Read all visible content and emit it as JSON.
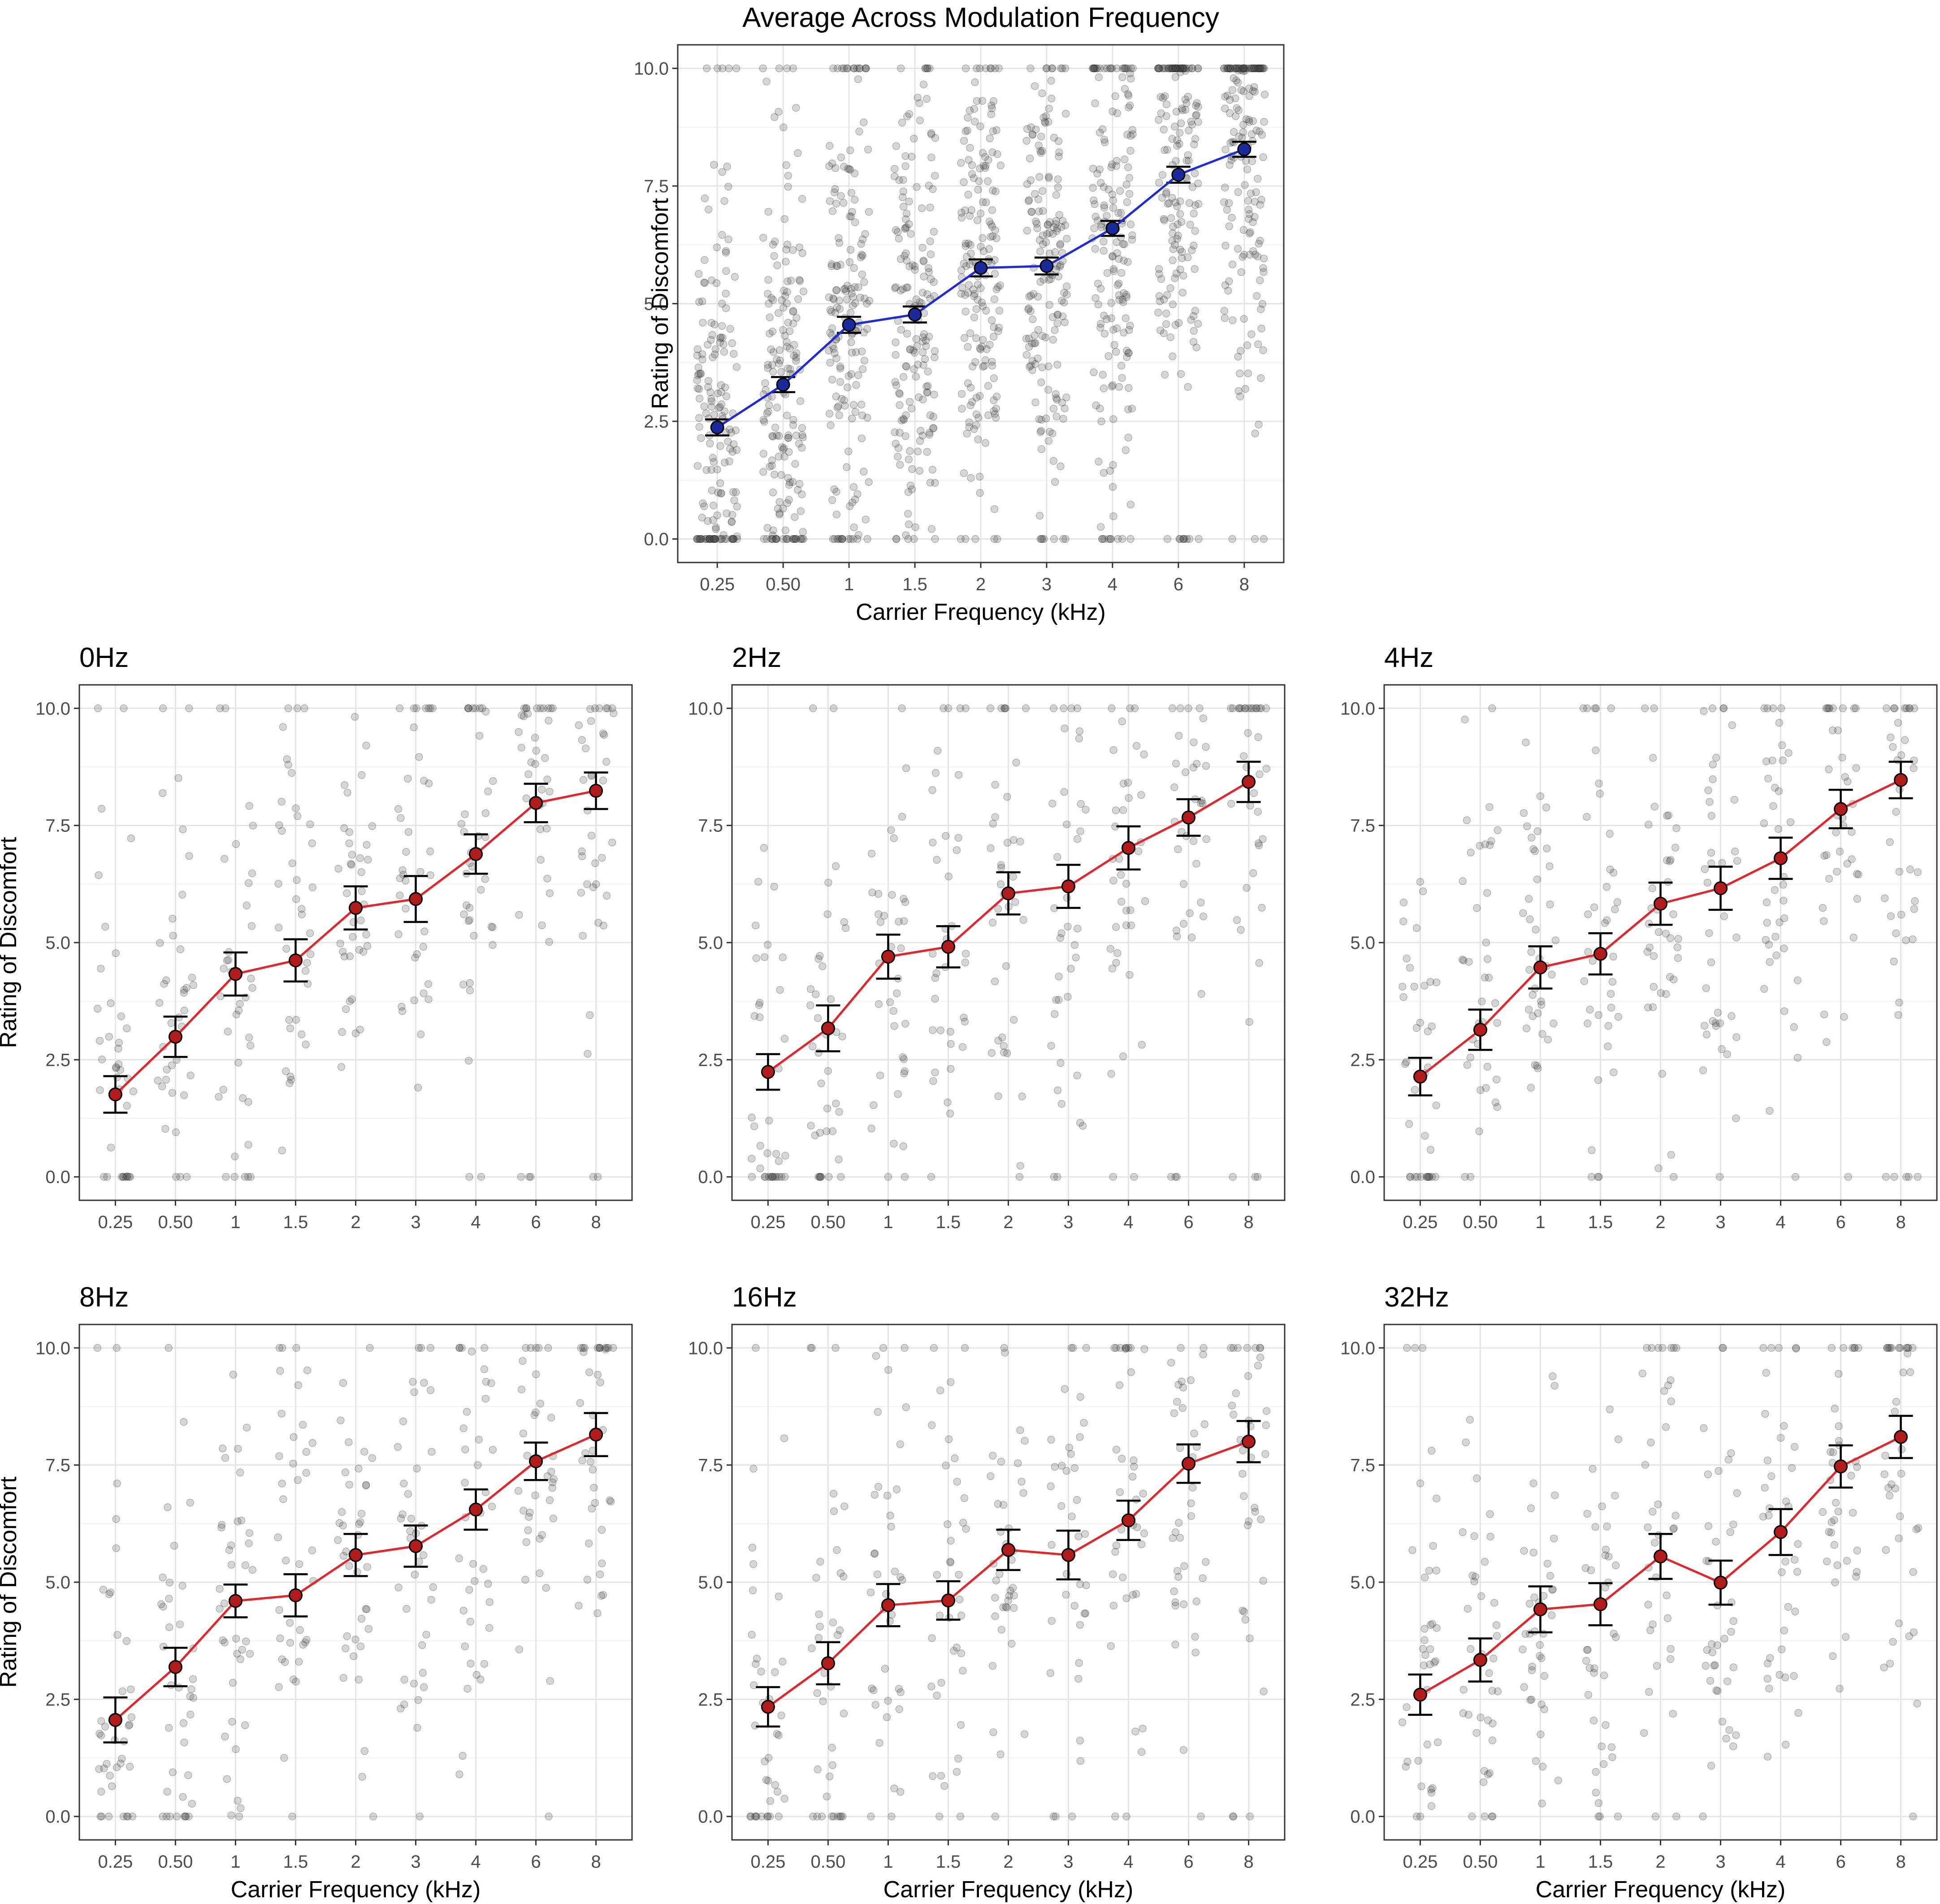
{
  "figure": {
    "y_axis_title": "Rating of Discomfort",
    "x_axis_title": "Carrier Frequency (kHz)"
  },
  "colors": {
    "average_line": "#1f2bd6",
    "average_point": "#1a2a9a",
    "panel_line": "#e3262b",
    "panel_point": "#b01b1b",
    "errorbar": "#000000",
    "jitter": "#4a4a4a"
  },
  "chart_data": [
    {
      "id": "average",
      "type": "line",
      "title": "Average Across Modulation Frequency",
      "xlabel": "Carrier Frequency (kHz)",
      "ylabel": "Rating of Discomfort",
      "categories": [
        "0.25",
        "0.50",
        "1",
        "1.5",
        "2",
        "3",
        "4",
        "6",
        "8"
      ],
      "y_ticks": [
        "0.0",
        "2.5",
        "5.0",
        "7.5",
        "10.0"
      ],
      "ylim": [
        -0.5,
        10.5
      ],
      "grid": true,
      "series": [
        {
          "name": "mean",
          "values": [
            2.37,
            3.28,
            4.55,
            4.77,
            5.76,
            5.8,
            6.6,
            7.74,
            8.28
          ]
        }
      ],
      "error_low": [
        2.2,
        3.12,
        4.38,
        4.6,
        5.58,
        5.62,
        6.44,
        7.57,
        8.12
      ],
      "error_high": [
        2.54,
        3.44,
        4.72,
        4.94,
        5.94,
        5.98,
        6.76,
        7.91,
        8.44
      ],
      "jitter_points_per_category": 170
    },
    {
      "id": "0hz",
      "type": "line",
      "title": "0Hz",
      "categories": [
        "0.25",
        "0.50",
        "1",
        "1.5",
        "2",
        "3",
        "4",
        "6",
        "8"
      ],
      "y_ticks": [
        "0.0",
        "2.5",
        "5.0",
        "7.5",
        "10.0"
      ],
      "ylim": [
        -0.5,
        10.5
      ],
      "grid": true,
      "series": [
        {
          "name": "mean",
          "values": [
            1.76,
            2.99,
            4.33,
            4.62,
            5.74,
            5.93,
            6.89,
            7.98,
            8.24
          ]
        }
      ],
      "error_low": [
        1.37,
        2.56,
        3.87,
        4.17,
        5.28,
        5.44,
        6.47,
        7.57,
        7.85
      ],
      "error_high": [
        2.15,
        3.42,
        4.79,
        5.07,
        6.2,
        6.42,
        7.31,
        8.39,
        8.63
      ],
      "jitter_points_per_category": 38
    },
    {
      "id": "2hz",
      "type": "line",
      "title": "2Hz",
      "categories": [
        "0.25",
        "0.50",
        "1",
        "1.5",
        "2",
        "3",
        "4",
        "6",
        "8"
      ],
      "y_ticks": [
        "0.0",
        "2.5",
        "5.0",
        "7.5",
        "10.0"
      ],
      "ylim": [
        -0.5,
        10.5
      ],
      "grid": true,
      "series": [
        {
          "name": "mean",
          "values": [
            2.24,
            3.17,
            4.7,
            4.91,
            6.05,
            6.2,
            7.02,
            7.67,
            8.43
          ]
        }
      ],
      "error_low": [
        1.86,
        2.68,
        4.23,
        4.47,
        5.6,
        5.74,
        6.56,
        7.28,
        8.0
      ],
      "error_high": [
        2.62,
        3.66,
        5.17,
        5.35,
        6.5,
        6.66,
        7.48,
        8.06,
        8.86
      ],
      "jitter_points_per_category": 38
    },
    {
      "id": "4hz",
      "type": "line",
      "title": "4Hz",
      "categories": [
        "0.25",
        "0.50",
        "1",
        "1.5",
        "2",
        "3",
        "4",
        "6",
        "8"
      ],
      "y_ticks": [
        "0.0",
        "2.5",
        "5.0",
        "7.5",
        "10.0"
      ],
      "ylim": [
        -0.5,
        10.5
      ],
      "grid": true,
      "series": [
        {
          "name": "mean",
          "values": [
            2.14,
            3.14,
            4.47,
            4.76,
            5.83,
            6.16,
            6.8,
            7.85,
            8.47
          ]
        }
      ],
      "error_low": [
        1.74,
        2.71,
        4.02,
        4.32,
        5.38,
        5.7,
        6.36,
        7.44,
        8.08
      ],
      "error_high": [
        2.54,
        3.57,
        4.92,
        5.2,
        6.28,
        6.62,
        7.24,
        8.26,
        8.86
      ],
      "jitter_points_per_category": 38
    },
    {
      "id": "8hz",
      "type": "line",
      "title": "8Hz",
      "categories": [
        "0.25",
        "0.50",
        "1",
        "1.5",
        "2",
        "3",
        "4",
        "6",
        "8"
      ],
      "y_ticks": [
        "0.0",
        "2.5",
        "5.0",
        "7.5",
        "10.0"
      ],
      "ylim": [
        -0.5,
        10.5
      ],
      "grid": true,
      "series": [
        {
          "name": "mean",
          "values": [
            2.06,
            3.19,
            4.6,
            4.72,
            5.58,
            5.77,
            6.55,
            7.58,
            8.15
          ]
        }
      ],
      "error_low": [
        1.58,
        2.78,
        4.25,
        4.27,
        5.13,
        5.33,
        6.12,
        7.18,
        7.69
      ],
      "error_high": [
        2.54,
        3.6,
        4.95,
        5.17,
        6.03,
        6.21,
        6.98,
        7.98,
        8.61
      ],
      "jitter_points_per_category": 38
    },
    {
      "id": "16hz",
      "type": "line",
      "title": "16Hz",
      "categories": [
        "0.25",
        "0.50",
        "1",
        "1.5",
        "2",
        "3",
        "4",
        "6",
        "8"
      ],
      "y_ticks": [
        "0.0",
        "2.5",
        "5.0",
        "7.5",
        "10.0"
      ],
      "ylim": [
        -0.5,
        10.5
      ],
      "grid": true,
      "series": [
        {
          "name": "mean",
          "values": [
            2.34,
            3.27,
            4.51,
            4.61,
            5.69,
            5.58,
            6.32,
            7.53,
            8.0
          ]
        }
      ],
      "error_low": [
        1.92,
        2.82,
        4.06,
        4.2,
        5.26,
        5.06,
        5.9,
        7.12,
        7.56
      ],
      "error_high": [
        2.76,
        3.72,
        4.96,
        5.02,
        6.12,
        6.1,
        6.74,
        7.94,
        8.44
      ],
      "jitter_points_per_category": 38
    },
    {
      "id": "32hz",
      "type": "line",
      "title": "32Hz",
      "categories": [
        "0.25",
        "0.50",
        "1",
        "1.5",
        "2",
        "3",
        "4",
        "6",
        "8"
      ],
      "y_ticks": [
        "0.0",
        "2.5",
        "5.0",
        "7.5",
        "10.0"
      ],
      "ylim": [
        -0.5,
        10.5
      ],
      "grid": true,
      "series": [
        {
          "name": "mean",
          "values": [
            2.6,
            3.34,
            4.42,
            4.53,
            5.55,
            4.99,
            6.07,
            7.47,
            8.1
          ]
        }
      ],
      "error_low": [
        2.17,
        2.88,
        3.93,
        4.08,
        5.07,
        4.52,
        5.58,
        7.02,
        7.65
      ],
      "error_high": [
        3.03,
        3.8,
        4.91,
        4.98,
        6.03,
        5.46,
        6.56,
        7.92,
        8.55
      ],
      "jitter_points_per_category": 38
    }
  ]
}
